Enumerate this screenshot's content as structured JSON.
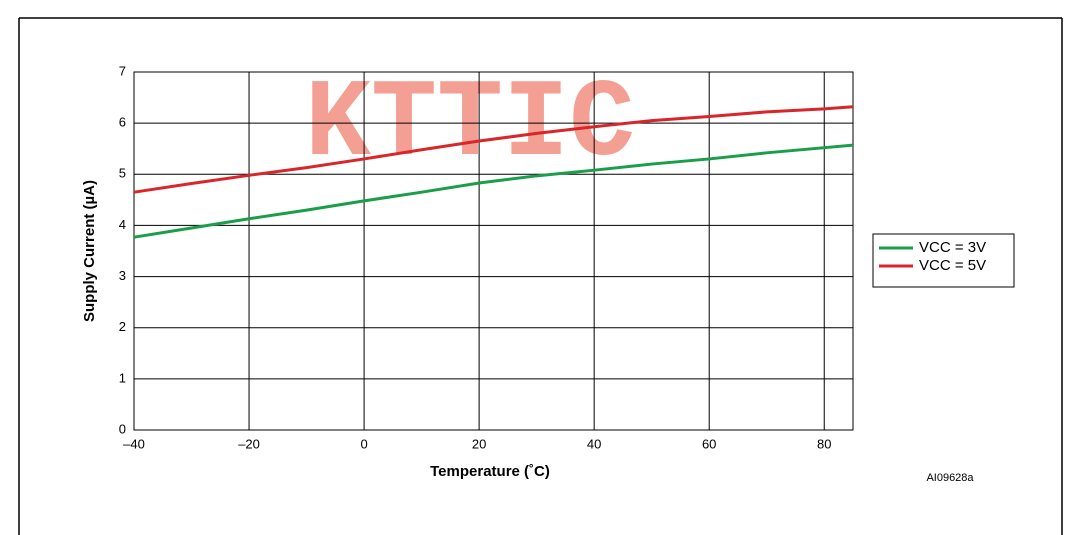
{
  "chart_data": {
    "type": "line",
    "xlabel": "Temperature (˚C)",
    "ylabel": "Supply Current (µA)",
    "annotations": [
      "KTTIC",
      "AI09628a"
    ],
    "x": [
      -40,
      -30,
      -20,
      -10,
      0,
      10,
      20,
      30,
      40,
      50,
      60,
      70,
      80,
      85
    ],
    "series": [
      {
        "name": "VCC = 3V",
        "color": "#1a9e4a",
        "values": [
          3.77,
          3.95,
          4.13,
          4.3,
          4.48,
          4.65,
          4.83,
          4.97,
          5.08,
          5.2,
          5.3,
          5.42,
          5.52,
          5.57
        ]
      },
      {
        "name": "VCC = 5V",
        "color": "#d9262b",
        "values": [
          4.65,
          4.82,
          4.98,
          5.13,
          5.3,
          5.48,
          5.65,
          5.8,
          5.93,
          6.05,
          6.13,
          6.22,
          6.28,
          6.32
        ]
      }
    ],
    "xlim": [
      -40,
      85
    ],
    "xticks": [
      {
        "value": -40,
        "label": "–40"
      },
      {
        "value": -20,
        "label": "–20"
      },
      0,
      20,
      40,
      60,
      80
    ],
    "ylim": [
      0,
      7
    ],
    "yticks": [
      0,
      1,
      2,
      3,
      4,
      5,
      6,
      7
    ],
    "grid": true,
    "legend": "right"
  }
}
